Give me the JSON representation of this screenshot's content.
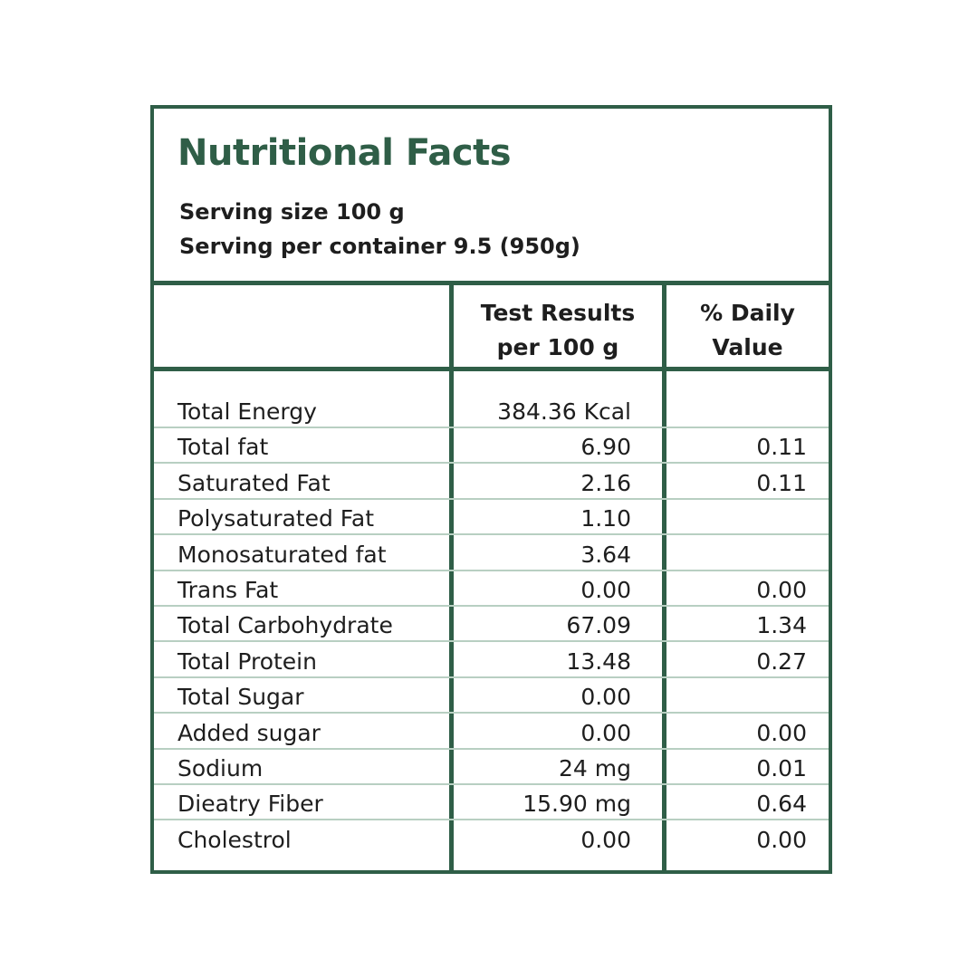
{
  "title": "Nutritional Facts",
  "serving_size": "Serving size 100 g",
  "serving_per_container": "Serving per container 9.5 (950g)",
  "columns": {
    "nutrient": "",
    "test_results": [
      "Test Results",
      "per 100 g"
    ],
    "daily_value": [
      "% Daily",
      "Value"
    ]
  },
  "colors": {
    "border": "#2f5e47",
    "row_line": "#b8cfc2"
  },
  "rows": [
    {
      "name": "Total Energy",
      "value": "384.36 Kcal",
      "dv": ""
    },
    {
      "name": "Total fat",
      "value": "6.90",
      "dv": "0.11"
    },
    {
      "name": "Saturated Fat",
      "value": "2.16",
      "dv": "0.11"
    },
    {
      "name": "Polysaturated Fat",
      "value": "1.10",
      "dv": ""
    },
    {
      "name": "Monosaturated fat",
      "value": "3.64",
      "dv": ""
    },
    {
      "name": "Trans Fat",
      "value": "0.00",
      "dv": "0.00"
    },
    {
      "name": "Total Carbohydrate",
      "value": "67.09",
      "dv": "1.34"
    },
    {
      "name": "Total Protein",
      "value": "13.48",
      "dv": "0.27"
    },
    {
      "name": "Total Sugar",
      "value": "0.00",
      "dv": ""
    },
    {
      "name": "Added sugar",
      "value": "0.00",
      "dv": "0.00"
    },
    {
      "name": "Sodium",
      "value": "24 mg",
      "dv": "0.01"
    },
    {
      "name": "Dieatry Fiber",
      "value": "15.90 mg",
      "dv": "0.64"
    },
    {
      "name": "Cholestrol",
      "value": "0.00",
      "dv": "0.00"
    }
  ]
}
